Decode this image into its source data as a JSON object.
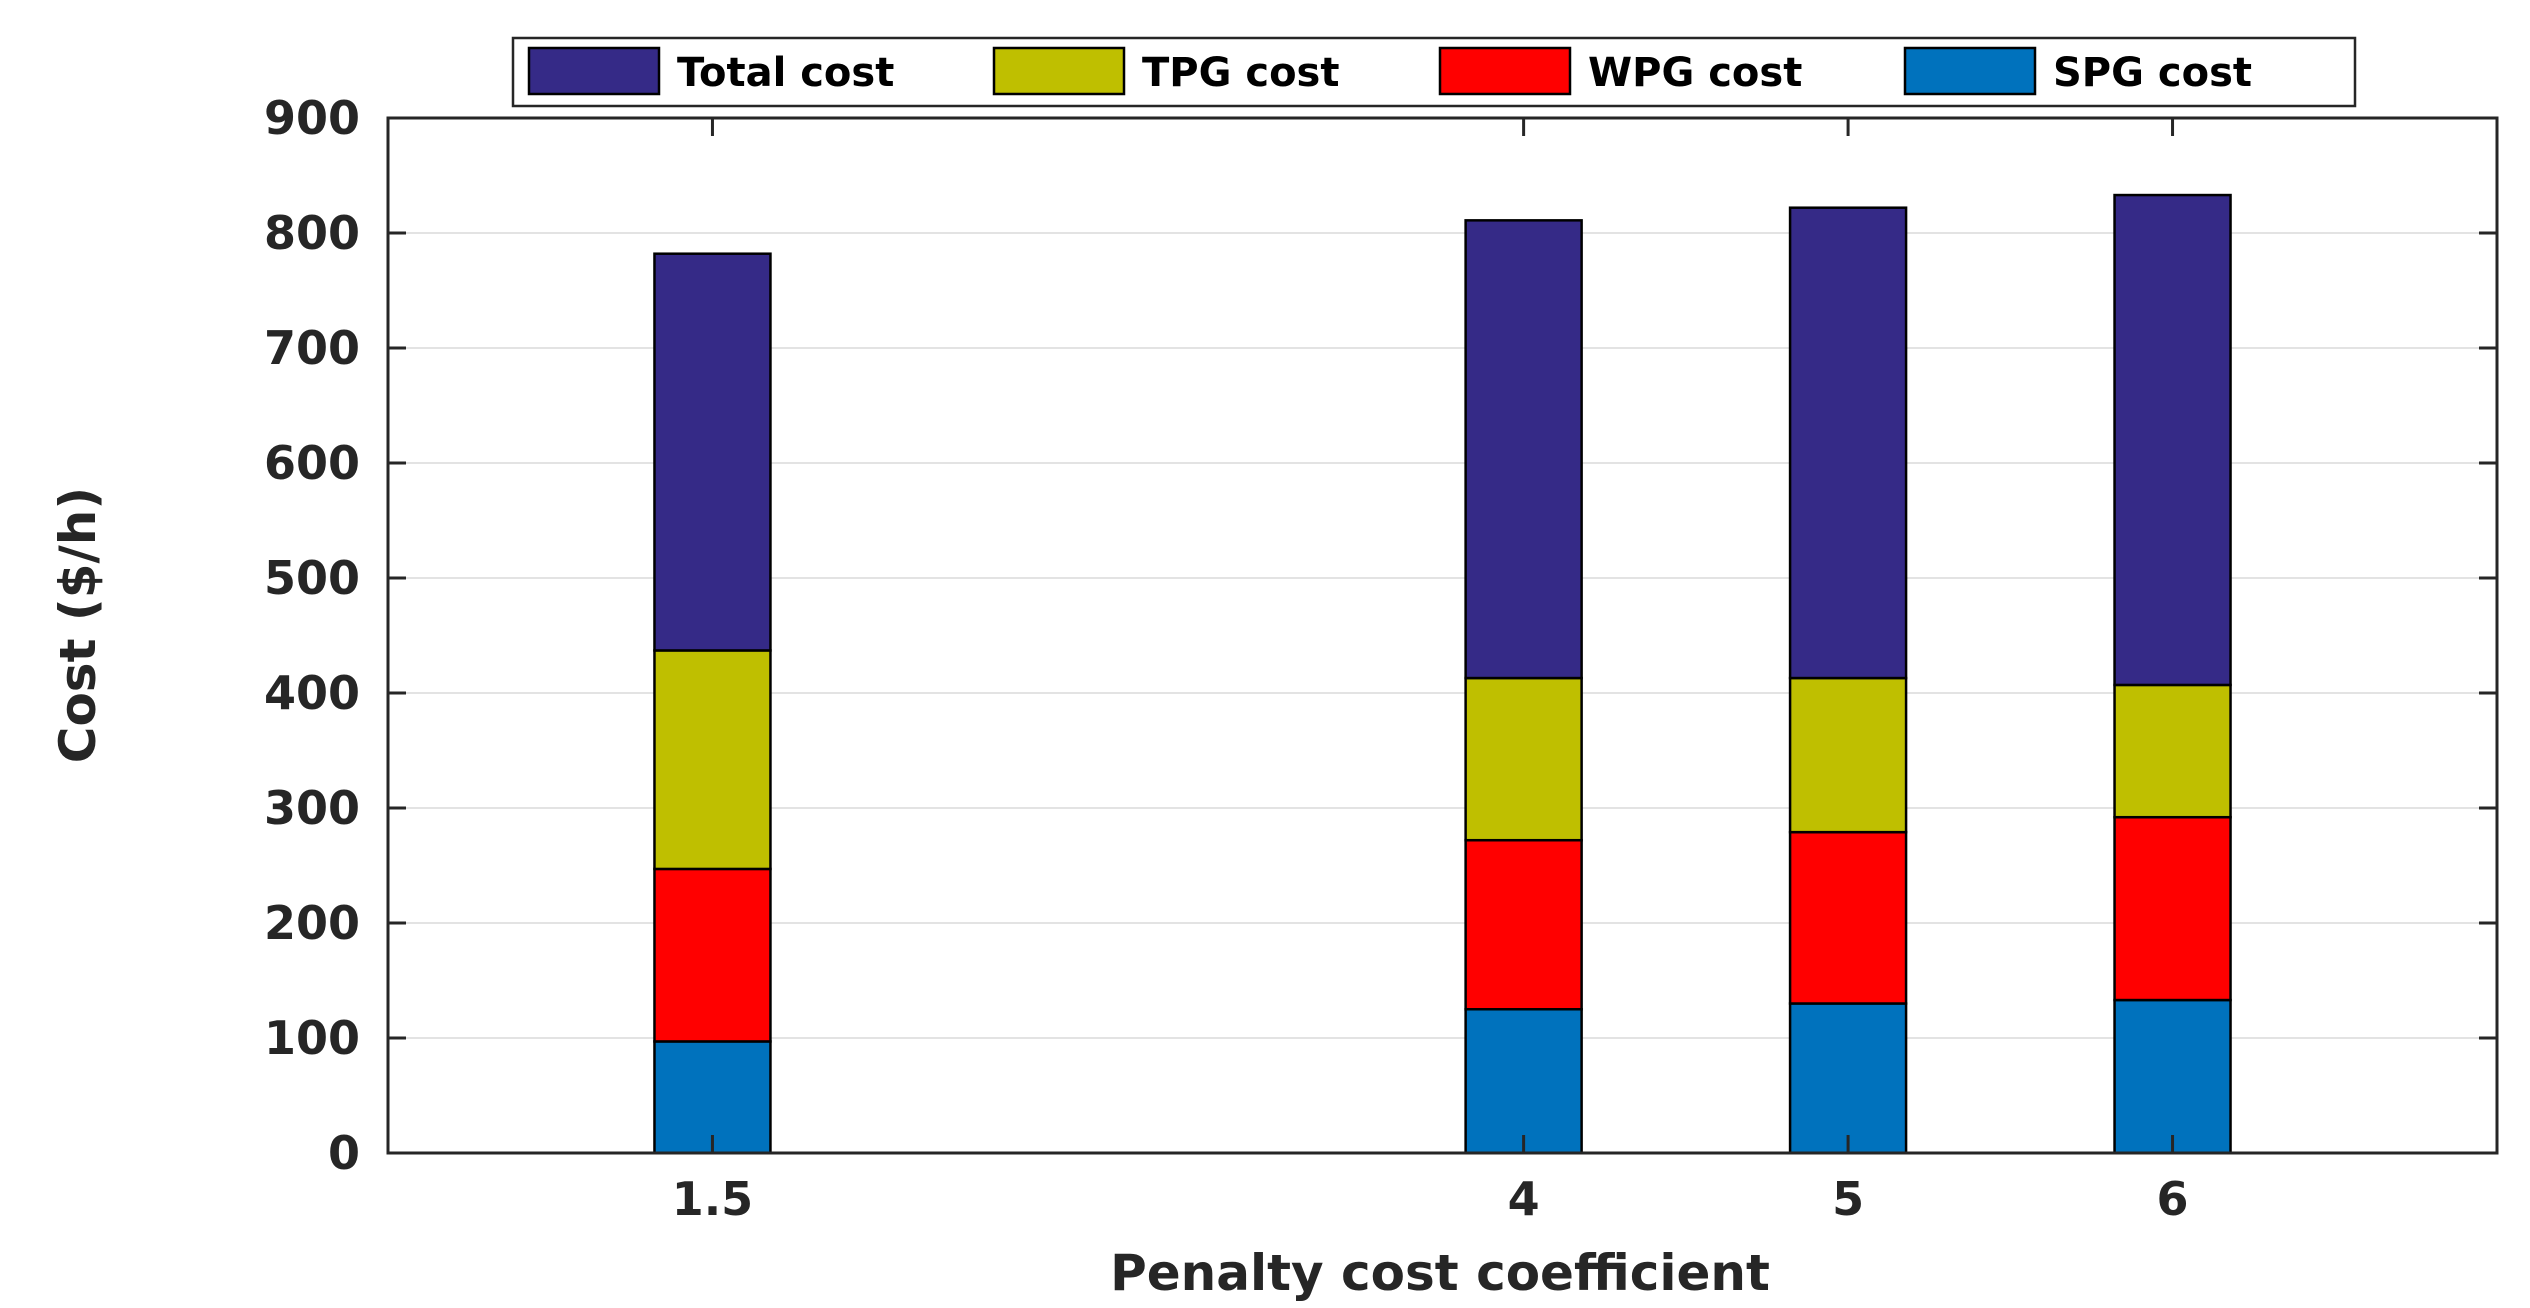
{
  "chart_data": {
    "type": "bar",
    "stacked": true,
    "title": "",
    "xlabel": "Penalty cost coefficient",
    "ylabel": "Cost ($/h)",
    "x": [
      1.5,
      4,
      5,
      6
    ],
    "x_tick_labels": [
      "1.5",
      "4",
      "5",
      "6"
    ],
    "xlim": [
      0.5,
      7.0
    ],
    "ylim": [
      0,
      900
    ],
    "y_ticks": [
      0,
      100,
      200,
      300,
      400,
      500,
      600,
      700,
      800,
      900
    ],
    "grid": true,
    "legend_position": "top",
    "series": [
      {
        "name": "SPG cost",
        "color": "#0072BD",
        "values": [
          97,
          125,
          130,
          133
        ]
      },
      {
        "name": "WPG cost",
        "color": "#FF0000",
        "values": [
          150,
          147,
          149,
          159
        ]
      },
      {
        "name": "TPG cost",
        "color": "#BFBF00",
        "values": [
          190,
          141,
          134,
          115
        ]
      },
      {
        "name": "Total cost",
        "color": "#352A87",
        "values": [
          345,
          398,
          409,
          426
        ]
      }
    ],
    "legend_order": [
      "Total cost",
      "TPG cost",
      "WPG cost",
      "SPG cost"
    ]
  }
}
